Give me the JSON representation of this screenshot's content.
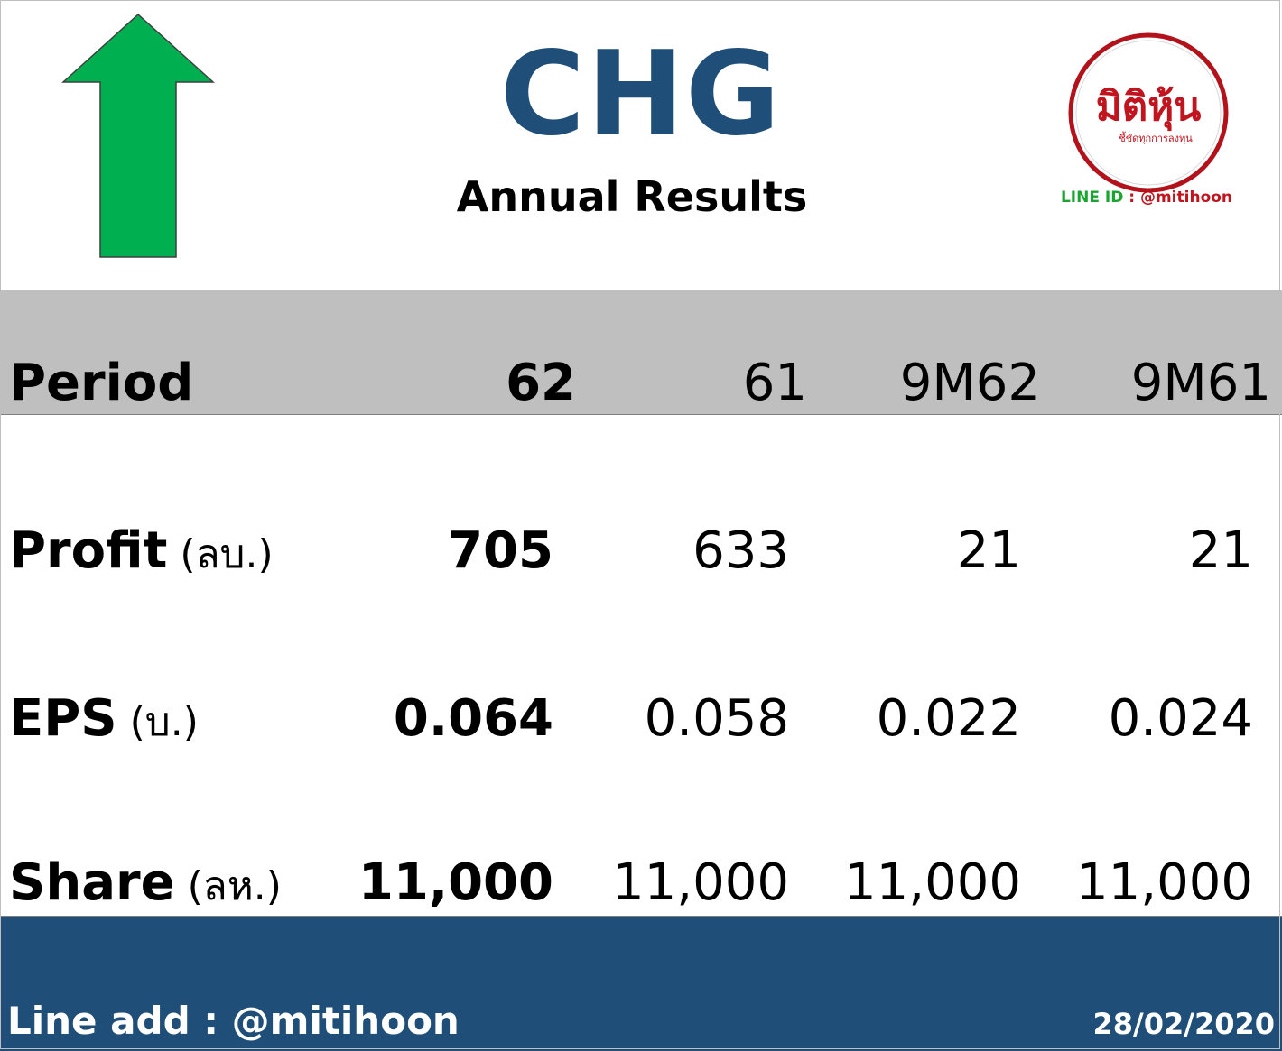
{
  "header": {
    "ticker": "CHG",
    "subtitle": "Annual Results",
    "arrow_color": "#00b050",
    "ticker_color": "#1f4e79",
    "logo": {
      "brand_text": "มิติหุ้น",
      "tagline": "ชี้ชัดทุกการลงทุน",
      "line_id_label": "LINE ID",
      "line_id_sep": " : ",
      "line_id_handle": "@mitihoon"
    }
  },
  "table": {
    "period_label": "Period",
    "columns": [
      "62",
      "61",
      "9M62",
      "9M61"
    ],
    "rows": [
      {
        "label": "Profit",
        "unit": " (ลบ.)",
        "values": [
          "705",
          "633",
          "21",
          "21"
        ]
      },
      {
        "label": "EPS",
        "unit": " (บ.)",
        "values": [
          "0.064",
          "0.058",
          "0.022",
          "0.024"
        ]
      },
      {
        "label": "Share",
        "unit": " (ลห.)",
        "values": [
          "11,000",
          "11,000",
          "11,000",
          "11,000"
        ]
      }
    ],
    "band_color": "#bfbfbf"
  },
  "footer": {
    "line_add": "Line add : @mitihoon",
    "date": "28/02/2020",
    "bg_color": "#1f4e79"
  }
}
